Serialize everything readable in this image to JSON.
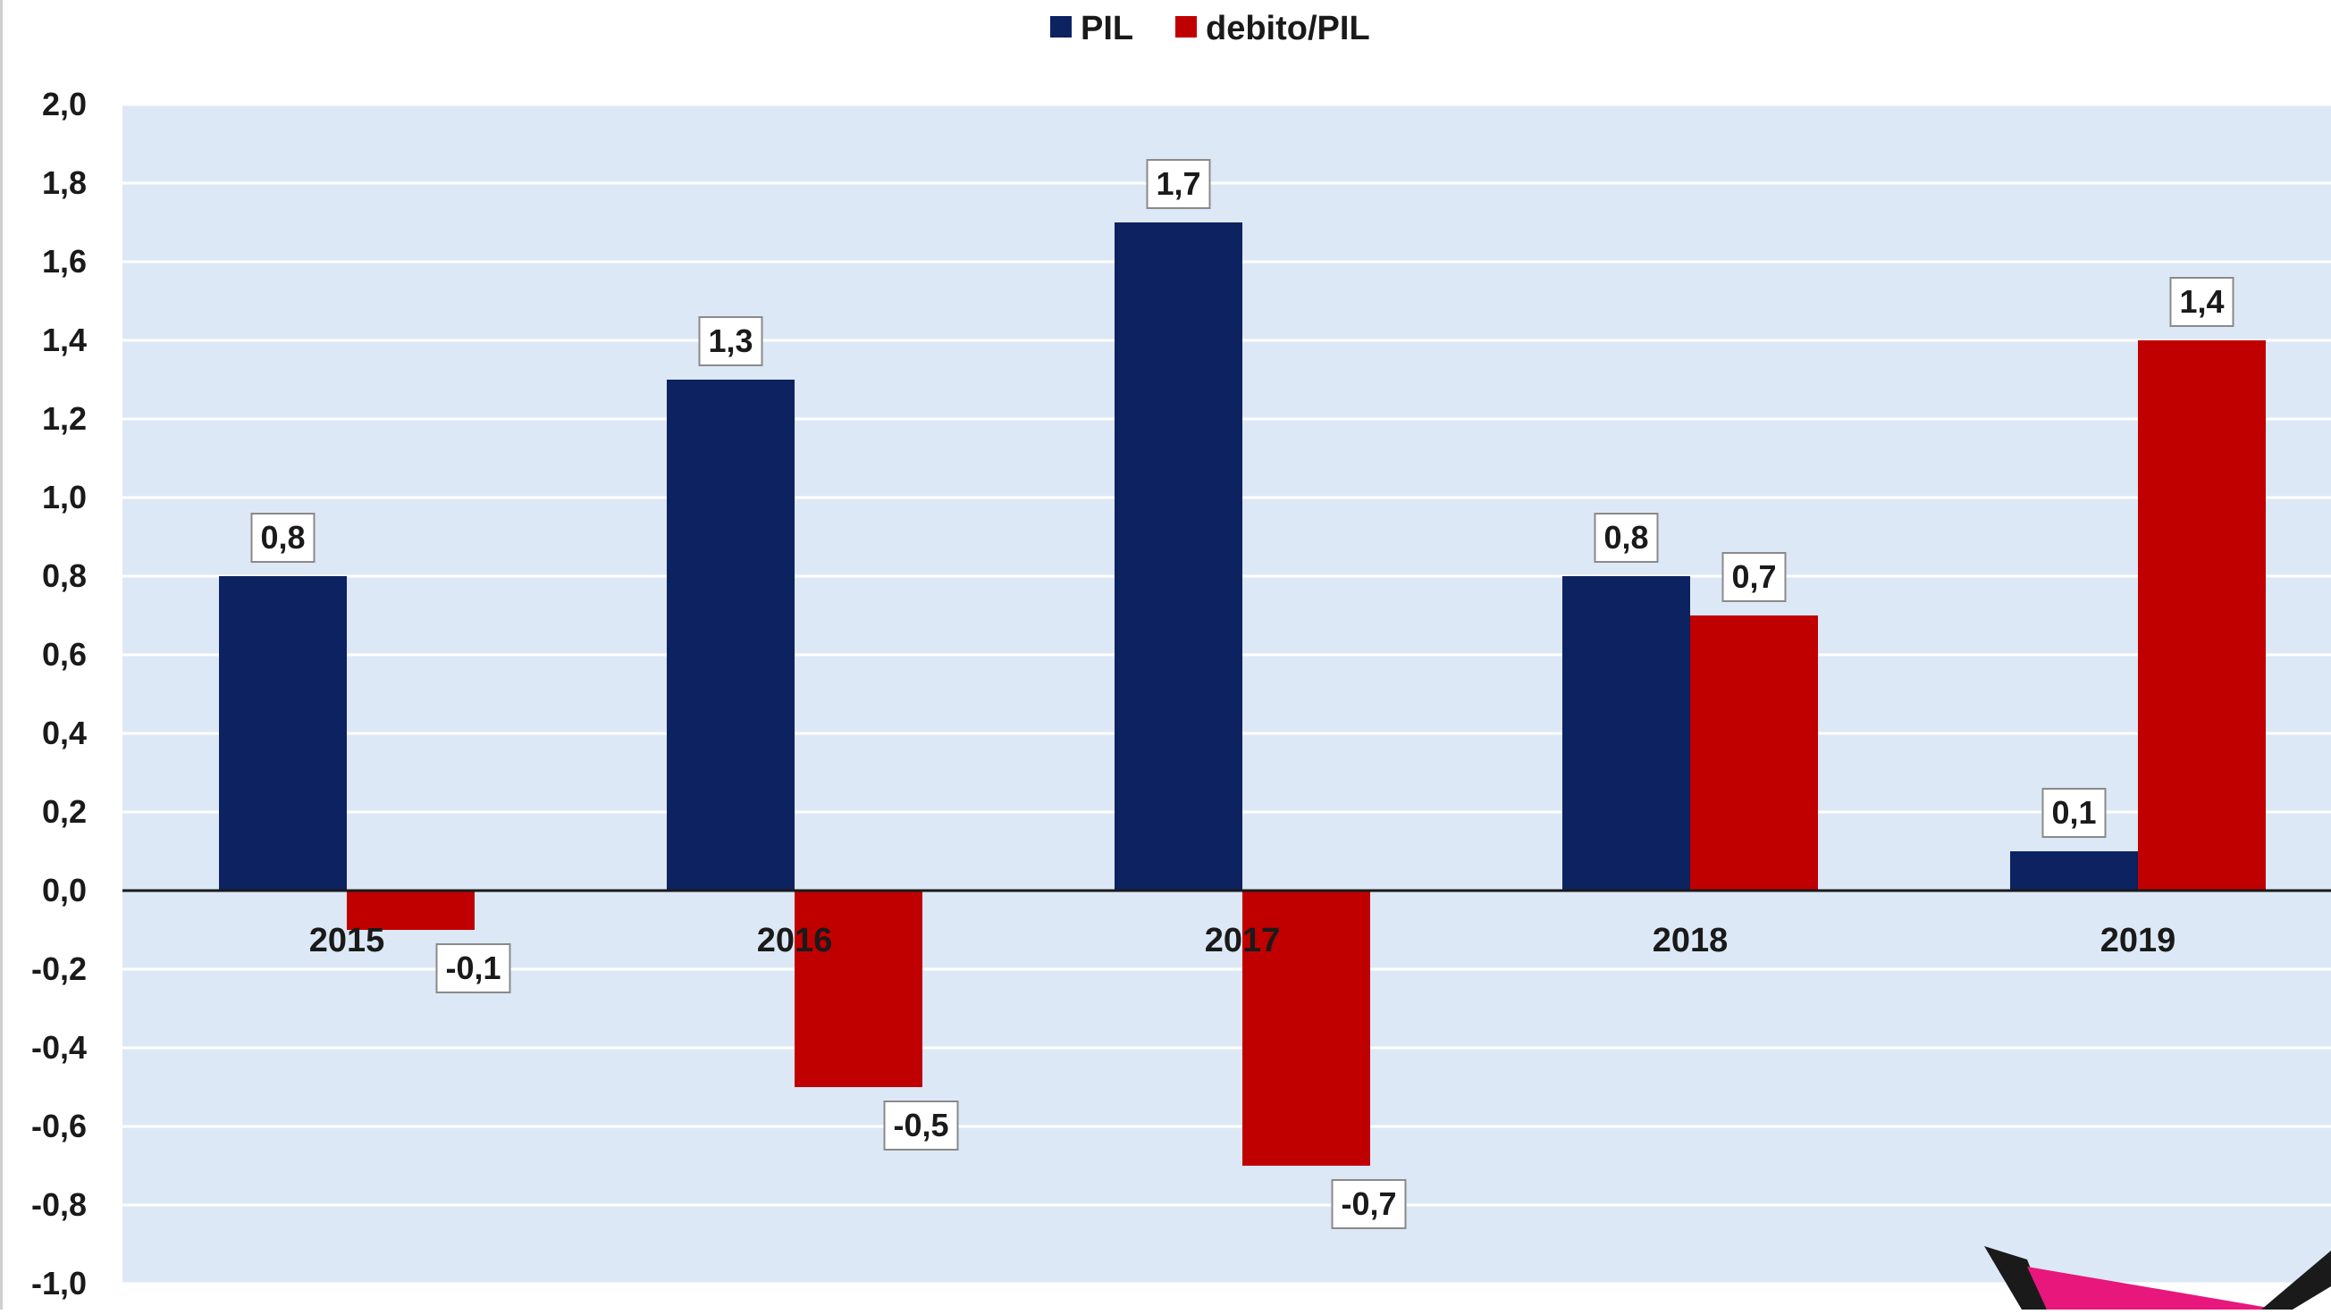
{
  "chart_data": {
    "type": "bar",
    "categories": [
      "2015",
      "2016",
      "2017",
      "2018",
      "2019"
    ],
    "series": [
      {
        "name": "PIL",
        "values": [
          0.8,
          1.3,
          1.7,
          0.8,
          0.1
        ],
        "labels": [
          "0,8",
          "1,3",
          "1,7",
          "0,8",
          "0,1"
        ]
      },
      {
        "name": "debito/PIL",
        "values": [
          -0.1,
          -0.5,
          -0.7,
          0.7,
          1.4
        ],
        "labels": [
          "-0,1",
          "-0,5",
          "-0,7",
          "0,7",
          "1,4"
        ]
      }
    ],
    "ylim": [
      -1.0,
      2.0
    ],
    "yticks": [
      2.0,
      1.8,
      1.6,
      1.4,
      1.2,
      1.0,
      0.8,
      0.6,
      0.4,
      0.2,
      0.0,
      -0.2,
      -0.4,
      -0.6,
      -0.8,
      -1.0
    ],
    "ytick_labels": [
      "2,0",
      "1,8",
      "1,6",
      "1,4",
      "1,2",
      "1,0",
      "0,8",
      "0,6",
      "0,4",
      "0,2",
      "0,0",
      "-0,2",
      "-0,4",
      "-0,6",
      "-0,8",
      "-1,0"
    ],
    "title": "",
    "xlabel": "",
    "ylabel": "",
    "grid": true,
    "legend_position": "top-center",
    "colors": {
      "PIL": "#0d2260",
      "debito/PIL": "#c00000",
      "plot_bg": "#dce8f5",
      "grid": "#ffffff",
      "zero_line": "#1a1a1a",
      "accent_shape": "#e8177c",
      "corner_shape": "#1a1a1a"
    }
  }
}
